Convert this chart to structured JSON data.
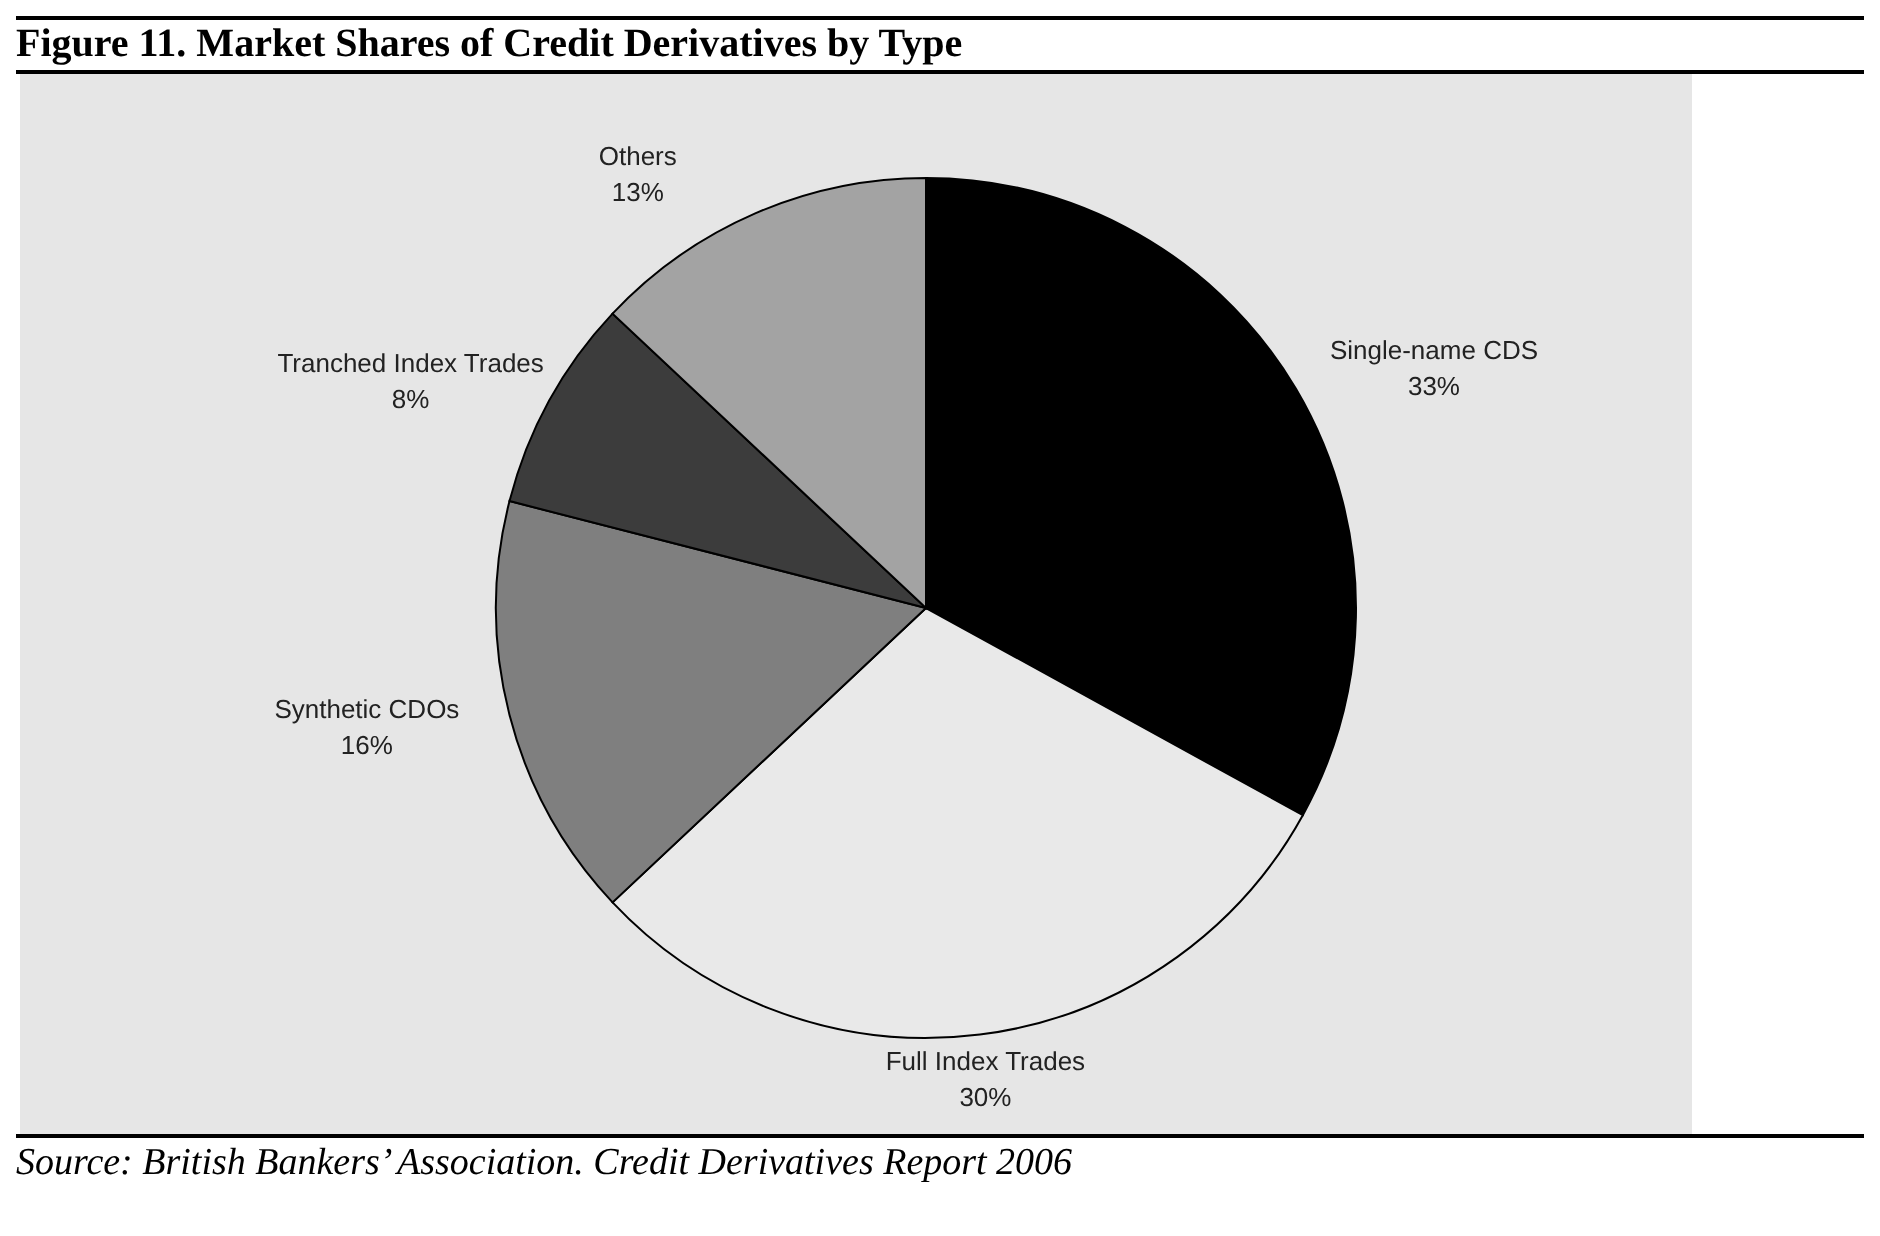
{
  "chart_data": {
    "type": "pie",
    "title": "Figure 11. Market Shares of Credit Derivatives by Type",
    "categories": [
      "Single-name CDS",
      "Full Index Trades",
      "Synthetic CDOs",
      "Tranched Index Trades",
      "Others"
    ],
    "values": [
      33,
      30,
      16,
      8,
      13
    ],
    "value_labels": [
      "33%",
      "30%",
      "16%",
      "8%",
      "13%"
    ],
    "colors": [
      "#000000",
      "#e9e9e9",
      "#7f7f7f",
      "#3c3c3c",
      "#a3a3a3"
    ],
    "annotations": [
      "Source: British Bankers’ Association. Credit Derivatives Report 2006"
    ]
  }
}
